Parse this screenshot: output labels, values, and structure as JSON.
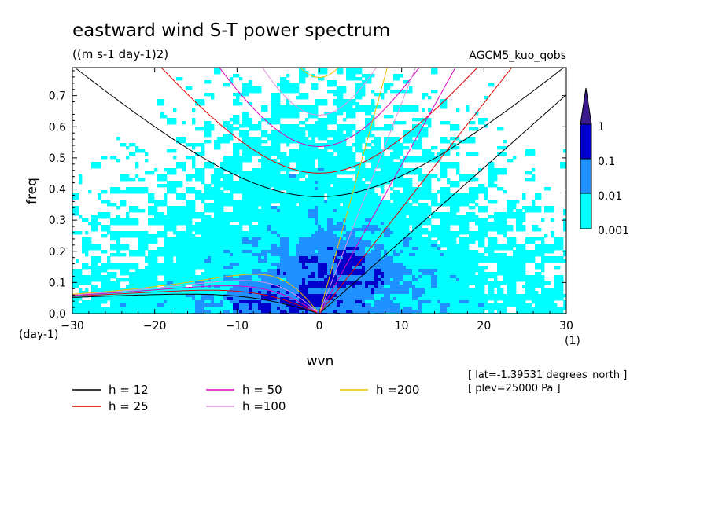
{
  "chart_data": {
    "type": "heatmap",
    "title": "eastward wind S-T power spectrum",
    "subtitle": "((m s-1 day-1)2)",
    "dataset_label": "AGCM5_kuo_qobs",
    "xlabel": "wvn",
    "ylabel": "freq",
    "x_unit": "(1)",
    "y_unit": "(day-1)",
    "xlim": [
      -30,
      30
    ],
    "ylim": [
      0,
      0.79
    ],
    "x_ticks": [
      -30,
      -20,
      -10,
      0,
      10,
      20,
      30
    ],
    "x_tick_labels": [
      "−30",
      "−20",
      "−10",
      "0",
      "10",
      "20",
      "30"
    ],
    "y_ticks": [
      0,
      0.1,
      0.2,
      0.3,
      0.4,
      0.5,
      0.6,
      0.7
    ],
    "y_tick_labels": [
      "0.0",
      "0.1",
      "0.2",
      "0.3",
      "0.4",
      "0.5",
      "0.6",
      "0.7"
    ],
    "grid": false,
    "colorbar": {
      "levels": [
        "0.001",
        "0.01",
        "0.1",
        "1"
      ],
      "colors": [
        "#00ffff",
        "#1e90ff",
        "#0000cd",
        "#3a1a8c"
      ]
    },
    "dispersion_curves": [
      {
        "name": "h = 12",
        "h": 12,
        "color": "#000000"
      },
      {
        "name": "h = 25",
        "h": 25,
        "color": "#e00000"
      },
      {
        "name": "h = 50",
        "h": 50,
        "color": "#e000c0"
      },
      {
        "name": "h =100",
        "h": 100,
        "color": "#e090e0"
      },
      {
        "name": "h =200",
        "h": 200,
        "color": "#f0c000"
      }
    ],
    "info_lines": [
      "[ lat=-1.39531 degrees_north ]",
      "[ plev=25000 Pa ]"
    ]
  }
}
